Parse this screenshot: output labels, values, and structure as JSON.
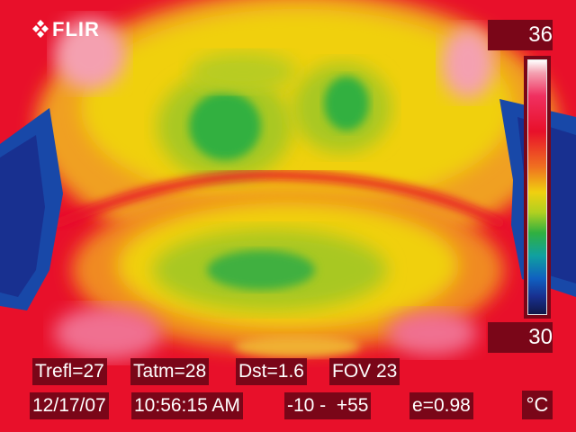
{
  "logo": {
    "text": "FLIR",
    "icon": "flir-diamond-icon"
  },
  "scale": {
    "max": "36",
    "min": "30",
    "unit": "°C"
  },
  "info_row1": {
    "trefl": "Trefl=27",
    "tatm": "Tatm=28",
    "dst": "Dst=1.6",
    "fov": "FOV 23"
  },
  "info_row2": {
    "date": "12/17/07",
    "time": "10:56:15 AM",
    "range": "-10 -  +55",
    "emissivity": "e=0.98"
  },
  "colors": {
    "hot": "#e8102a",
    "warm": "#f0d010",
    "mid": "#30b040",
    "cool": "#1060c0",
    "label_bg": "#7a0618"
  }
}
